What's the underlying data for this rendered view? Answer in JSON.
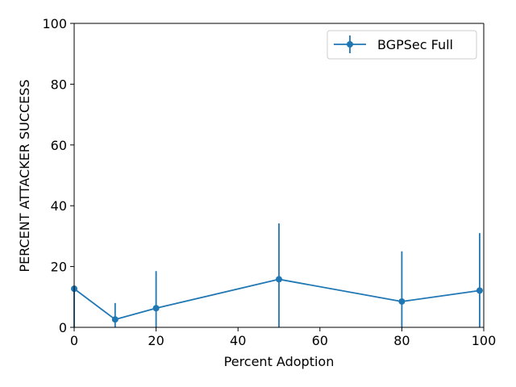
{
  "chart_data": {
    "type": "line",
    "xlabel": "Percent Adoption",
    "ylabel": "PERCENT ATTACKER SUCCESS",
    "xlim": [
      0,
      100
    ],
    "ylim": [
      0,
      100
    ],
    "xticks": [
      0,
      20,
      40,
      60,
      80,
      100
    ],
    "yticks": [
      0,
      20,
      40,
      60,
      80,
      100
    ],
    "grid": false,
    "legend_position": "top-right",
    "series": [
      {
        "name": "BGPSec Full",
        "color": "#1f77b4",
        "marker": "circle",
        "x": [
          0,
          10,
          20,
          50,
          80,
          99
        ],
        "y": [
          12.7,
          2.6,
          6.3,
          15.8,
          8.5,
          12.1
        ],
        "err_low": [
          12.7,
          2.6,
          6.3,
          15.8,
          8.5,
          12.1
        ],
        "err_high": [
          null,
          8.0,
          18.5,
          34.2,
          25.0,
          31.0
        ]
      }
    ]
  }
}
